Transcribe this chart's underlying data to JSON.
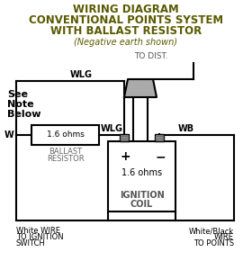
{
  "title_line1": "WIRING DIAGRAM",
  "title_line2": "CONVENTIONAL POINTS SYSTEM",
  "title_line3": "WITH BALLAST RESISTOR",
  "subtitle": "(Negative earth shown)",
  "title_color": "#5a5a00",
  "bg_color": "#ffffff",
  "line_color": "#000000",
  "note_text_1": "See",
  "note_text_2": "Note",
  "note_text_3": "Below",
  "to_dist": "TO DIST.",
  "label_WLG_top": "WLG",
  "label_WLG_bot": "WLG",
  "label_WB": "WB",
  "label_W": "W",
  "ballast_ohms": "1.6 ohms",
  "ballast_label1": "BALLAST",
  "ballast_label2": "RESISTOR",
  "coil_ohms": "1.6 ohms",
  "coil_label1": "IGNITION",
  "coil_label2": "COIL",
  "plus_label": "+",
  "minus_label": "−",
  "bottom_left1": "White WIRE",
  "bottom_left2": "TO IGNITION",
  "bottom_left3": "SWITCH",
  "bottom_right1": "White/Black",
  "bottom_right2": "WIRE",
  "bottom_right3": "TO POINTS",
  "figsize": [
    2.8,
    2.9
  ],
  "dpi": 100
}
